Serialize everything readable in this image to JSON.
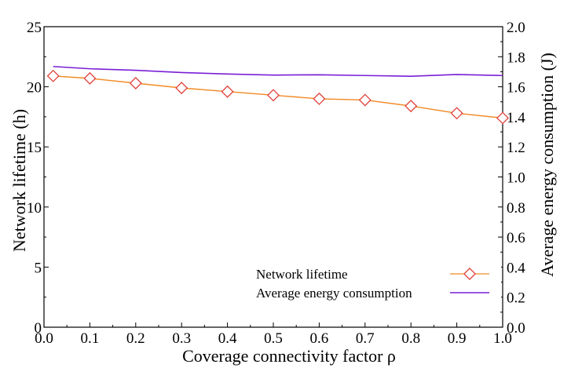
{
  "chart_data": {
    "type": "line",
    "xlabel": "Coverage connectivity factor ρ",
    "ylabel_left": "Network lifetime (h)",
    "ylabel_right": "Average energy consumption (J)",
    "x_ticks": [
      "0.0",
      "0.1",
      "0.2",
      "0.3",
      "0.4",
      "0.5",
      "0.6",
      "0.7",
      "0.8",
      "0.9",
      "1.0"
    ],
    "y_left_ticks": [
      "0",
      "5",
      "10",
      "15",
      "20",
      "25"
    ],
    "y_right_ticks": [
      "0.0",
      "0.2",
      "0.4",
      "0.6",
      "0.8",
      "1.0",
      "1.2",
      "1.4",
      "1.6",
      "1.8",
      "2.0"
    ],
    "xlim": [
      0,
      1
    ],
    "ylim_left": [
      0,
      25
    ],
    "ylim_right": [
      0,
      2
    ],
    "x": [
      0.02,
      0.1,
      0.2,
      0.3,
      0.4,
      0.5,
      0.6,
      0.7,
      0.8,
      0.9,
      1.0
    ],
    "series": [
      {
        "name": "Network lifetime",
        "axis": "left",
        "color": "#f08a24",
        "marker": "diamond",
        "marker_color": "#e0403a",
        "values": [
          20.9,
          20.7,
          20.3,
          19.9,
          19.6,
          19.3,
          19.0,
          18.9,
          18.4,
          17.8,
          17.4
        ]
      },
      {
        "name": "Average energy consumption",
        "axis": "right",
        "color": "#7a1fd6",
        "marker": "none",
        "values": [
          1.735,
          1.72,
          1.71,
          1.695,
          1.685,
          1.678,
          1.68,
          1.675,
          1.67,
          1.682,
          1.675
        ]
      }
    ],
    "legend": {
      "position": "bottom-right",
      "entries": [
        "Network lifetime",
        "Average energy consumption"
      ]
    }
  }
}
